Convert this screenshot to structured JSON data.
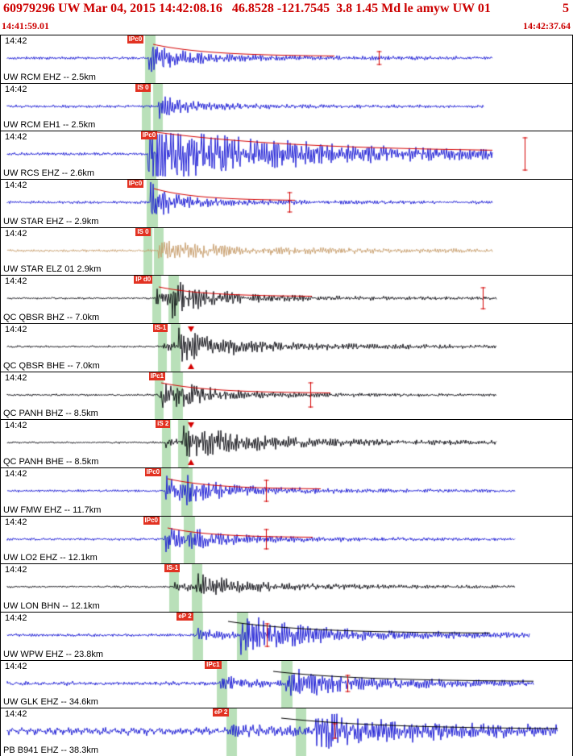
{
  "header": {
    "event_line": "60979296 UW Mar 04, 2015 14:42:08.16   46.8528 -121.7545  3.8 1.45 Md le amyw UW 01",
    "page_num": "5",
    "window_start": "14:41:59.01",
    "window_end": "14:42:37.64"
  },
  "colors": {
    "header_text": "#cc0000",
    "flag_bg": "#e23222",
    "flag_text": "#ffffff",
    "pick_band": "#b9e0b9",
    "marker_red": "#d40000",
    "blue": "#1212d2",
    "black": "#06060c",
    "tan": "#c59a66"
  },
  "traces": [
    {
      "time_label": "14:42",
      "station_label": "UW RCM EHZ -- 2.5km",
      "pick": {
        "label": "IPc0",
        "x": 0.221
      },
      "bands": [
        {
          "x": 0.253,
          "w": 13
        }
      ],
      "color": "blue",
      "seed": 101,
      "noise": 1.2,
      "end": 0.861,
      "bursts": [
        {
          "x": 0.259,
          "amp": 14,
          "decay": 35
        }
      ],
      "curve": {
        "x": 0.266,
        "amp": 15,
        "len": 45,
        "color": "red"
      },
      "spikes": [
        {
          "x": 0.662,
          "h": 9
        }
      ]
    },
    {
      "time_label": "14:42",
      "station_label": "UW RCM EH1 -- 2.5km",
      "pick": {
        "label": "IS 0",
        "x": 0.236
      },
      "bands": [
        {
          "x": 0.2475,
          "w": 11
        },
        {
          "x": 0.267,
          "w": 12
        }
      ],
      "color": "blue",
      "seed": 102,
      "noise": 1.2,
      "end": 0.845,
      "bursts": [
        {
          "x": 0.276,
          "amp": 11,
          "decay": 28
        }
      ]
    },
    {
      "time_label": "14:42",
      "station_label": "UW RCS EHZ -- 2.6km",
      "pick": {
        "label": "IPc0",
        "x": 0.245
      },
      "bands": [
        {
          "x": 0.2518,
          "w": 14
        }
      ],
      "color": "blue",
      "seed": 103,
      "noise": 1.3,
      "end": 0.861,
      "bursts": [
        {
          "x": 0.257,
          "amp": 34,
          "decay": 110
        }
      ],
      "curve": {
        "x": 0.272,
        "amp": 25,
        "len": 120,
        "color": "red"
      },
      "spikes": [
        {
          "x": 0.917,
          "h": 21
        }
      ]
    },
    {
      "time_label": "14:42",
      "station_label": "UW STAR EHZ -- 2.9km",
      "pick": {
        "label": "IPc0",
        "x": 0.221
      },
      "bands": [
        {
          "x": 0.2546,
          "w": 14
        }
      ],
      "color": "blue",
      "seed": 104,
      "noise": 1.2,
      "end": 0.861,
      "bursts": [
        {
          "x": 0.262,
          "amp": 17,
          "decay": 26
        }
      ],
      "curve": {
        "x": 0.268,
        "amp": 15,
        "len": 35,
        "color": "red"
      },
      "spikes": [
        {
          "x": 0.505,
          "h": 13
        }
      ]
    },
    {
      "time_label": "14:42",
      "station_label": "UW STAR ELZ 01 2.9km",
      "pick": {
        "label": "IS 0",
        "x": 0.236
      },
      "bands": [
        {
          "x": 0.249,
          "w": 11
        },
        {
          "x": 0.2686,
          "w": 12
        }
      ],
      "color": "tan",
      "seed": 105,
      "noise": 1.0,
      "end": 0.861,
      "bursts": [
        {
          "x": 0.276,
          "amp": 8,
          "decay": 90
        }
      ]
    },
    {
      "time_label": "14:42",
      "station_label": "QC QBSR BHZ -- 7.0km",
      "pick": {
        "label": "IP d0",
        "x": 0.233
      },
      "bands": [
        {
          "x": 0.2658,
          "w": 11
        },
        {
          "x": 0.294,
          "w": 13
        }
      ],
      "color": "black",
      "seed": 106,
      "noise": 0.8,
      "end": 0.868,
      "bursts": [
        {
          "x": 0.272,
          "amp": 11,
          "decay": 18
        },
        {
          "x": 0.3,
          "amp": 13,
          "decay": 42
        }
      ],
      "curve": {
        "x": 0.277,
        "amp": 12,
        "len": 38,
        "color": "red"
      },
      "spikes": [
        {
          "x": 0.843,
          "h": 14
        }
      ]
    },
    {
      "time_label": "14:42",
      "station_label": "QC QBSR BHE -- 7.0km",
      "pick": {
        "label": "IS-1",
        "x": 0.266
      },
      "bands": [
        {
          "x": 0.2757,
          "w": 11
        },
        {
          "x": 0.2982,
          "w": 12
        }
      ],
      "color": "black",
      "seed": 107,
      "noise": 0.8,
      "end": 0.868,
      "bursts": [
        {
          "x": 0.282,
          "amp": 4,
          "decay": 25
        },
        {
          "x": 0.307,
          "amp": 13,
          "decay": 65
        }
      ],
      "triangles": [
        {
          "x": 0.333
        }
      ]
    },
    {
      "time_label": "14:42",
      "station_label": "QC PANH BHZ -- 8.5km",
      "pick": {
        "label": "IPc1",
        "x": 0.259
      },
      "bands": [
        {
          "x": 0.27,
          "w": 11
        },
        {
          "x": 0.301,
          "w": 13
        }
      ],
      "color": "black",
      "seed": 108,
      "noise": 0.8,
      "end": 0.868,
      "bursts": [
        {
          "x": 0.276,
          "amp": 13,
          "decay": 20
        },
        {
          "x": 0.307,
          "amp": 8,
          "decay": 40
        }
      ],
      "curve": {
        "x": 0.281,
        "amp": 13,
        "len": 42,
        "color": "red"
      },
      "spikes": [
        {
          "x": 0.541,
          "h": 16
        }
      ]
    },
    {
      "time_label": "14:42",
      "station_label": "QC PANH BHE -- 8.5km",
      "pick": {
        "label": "iS 2",
        "x": 0.271
      },
      "bands": [
        {
          "x": 0.2827,
          "w": 11
        },
        {
          "x": 0.3108,
          "w": 13
        }
      ],
      "color": "black",
      "seed": 109,
      "noise": 0.8,
      "end": 0.868,
      "bursts": [
        {
          "x": 0.288,
          "amp": 4,
          "decay": 25
        },
        {
          "x": 0.318,
          "amp": 14,
          "decay": 75
        }
      ],
      "triangles": [
        {
          "x": 0.333
        }
      ]
    },
    {
      "time_label": "14:42",
      "station_label": "UW FMW EHZ -- 11.7km",
      "pick": {
        "label": "IPc0",
        "x": 0.252
      },
      "bands": [
        {
          "x": 0.28,
          "w": 12
        },
        {
          "x": 0.3165,
          "w": 14
        }
      ],
      "color": "blue",
      "seed": 110,
      "noise": 1.0,
      "end": 0.9,
      "bursts": [
        {
          "x": 0.287,
          "amp": 13,
          "decay": 24
        },
        {
          "x": 0.323,
          "amp": 9,
          "decay": 42
        }
      ],
      "curve": {
        "x": 0.292,
        "amp": 13,
        "len": 38,
        "color": "red"
      },
      "spikes": [
        {
          "x": 0.464,
          "h": 14
        }
      ]
    },
    {
      "time_label": "14:42",
      "station_label": "UW LO2 EHZ -- 12.1km",
      "pick": {
        "label": "IPc0",
        "x": 0.249
      },
      "bands": [
        {
          "x": 0.28,
          "w": 12
        },
        {
          "x": 0.3207,
          "w": 14
        }
      ],
      "color": "blue",
      "seed": 111,
      "noise": 1.0,
      "end": 0.9,
      "bursts": [
        {
          "x": 0.287,
          "amp": 12,
          "decay": 22
        },
        {
          "x": 0.327,
          "amp": 7,
          "decay": 42
        }
      ],
      "curve": {
        "x": 0.292,
        "amp": 12,
        "len": 36,
        "color": "red"
      },
      "spikes": [
        {
          "x": 0.464,
          "h": 13
        }
      ]
    },
    {
      "time_label": "14:42",
      "station_label": "UW LON BHN -- 12.1km",
      "pick": {
        "label": "IS-1",
        "x": 0.287
      },
      "bands": [
        {
          "x": 0.2954,
          "w": 12
        },
        {
          "x": 0.3347,
          "w": 13
        }
      ],
      "color": "black",
      "seed": 112,
      "noise": 0.8,
      "end": 0.9,
      "bursts": [
        {
          "x": 0.302,
          "amp": 5,
          "decay": 28
        },
        {
          "x": 0.342,
          "amp": 9,
          "decay": 55
        }
      ]
    },
    {
      "time_label": "14:42",
      "station_label": "UW WPW EHZ -- 23.8km",
      "pick": {
        "label": "eP 2",
        "x": 0.308
      },
      "bands": [
        {
          "x": 0.3361,
          "w": 13
        },
        {
          "x": 0.4135,
          "w": 14
        }
      ],
      "color": "blue",
      "seed": 113,
      "noise": 1.2,
      "end": 0.925,
      "bursts": [
        {
          "x": 0.343,
          "amp": 5,
          "decay": 36
        },
        {
          "x": 0.42,
          "amp": 16,
          "decay": 65
        }
      ],
      "curve": {
        "x": 0.398,
        "amp": 15,
        "len": 65,
        "color": "black"
      },
      "spikes": [
        {
          "x": 0.466,
          "h": 15
        }
      ]
    },
    {
      "time_label": "14:42",
      "station_label": "UW GLK EHZ -- 34.6km",
      "pick": {
        "label": "IPc1",
        "x": 0.357
      },
      "bands": [
        {
          "x": 0.3784,
          "w": 13
        },
        {
          "x": 0.4909,
          "w": 14
        }
      ],
      "color": "blue",
      "seed": 114,
      "noise": 1.5,
      "mid": 0.8,
      "end": 0.932,
      "bursts": [
        {
          "x": 0.385,
          "amp": 6,
          "decay": 32
        },
        {
          "x": 0.499,
          "amp": 12,
          "decay": 65
        }
      ],
      "curve": {
        "x": 0.477,
        "amp": 13,
        "len": 75,
        "color": "black"
      },
      "spikes": [
        {
          "x": 0.606,
          "h": 11
        }
      ]
    },
    {
      "time_label": "14:42",
      "station_label": "PB B941 EHZ -- 38.3km",
      "pick": {
        "label": "eP 2",
        "x": 0.371
      },
      "bands": [
        {
          "x": 0.3952,
          "w": 13
        },
        {
          "x": 0.5162,
          "w": 13
        }
      ],
      "color": "blue",
      "seed": 115,
      "noise": 2.6,
      "mid": 2.0,
      "end": 0.975,
      "bursts": [
        {
          "x": 0.402,
          "amp": 5,
          "decay": 45
        },
        {
          "x": 0.549,
          "amp": 13,
          "decay": 110
        }
      ],
      "curve": {
        "x": 0.491,
        "amp": 14,
        "len": 85,
        "color": "black"
      },
      "spikes": [
        {
          "x": 0.584,
          "h": 10
        }
      ]
    }
  ]
}
